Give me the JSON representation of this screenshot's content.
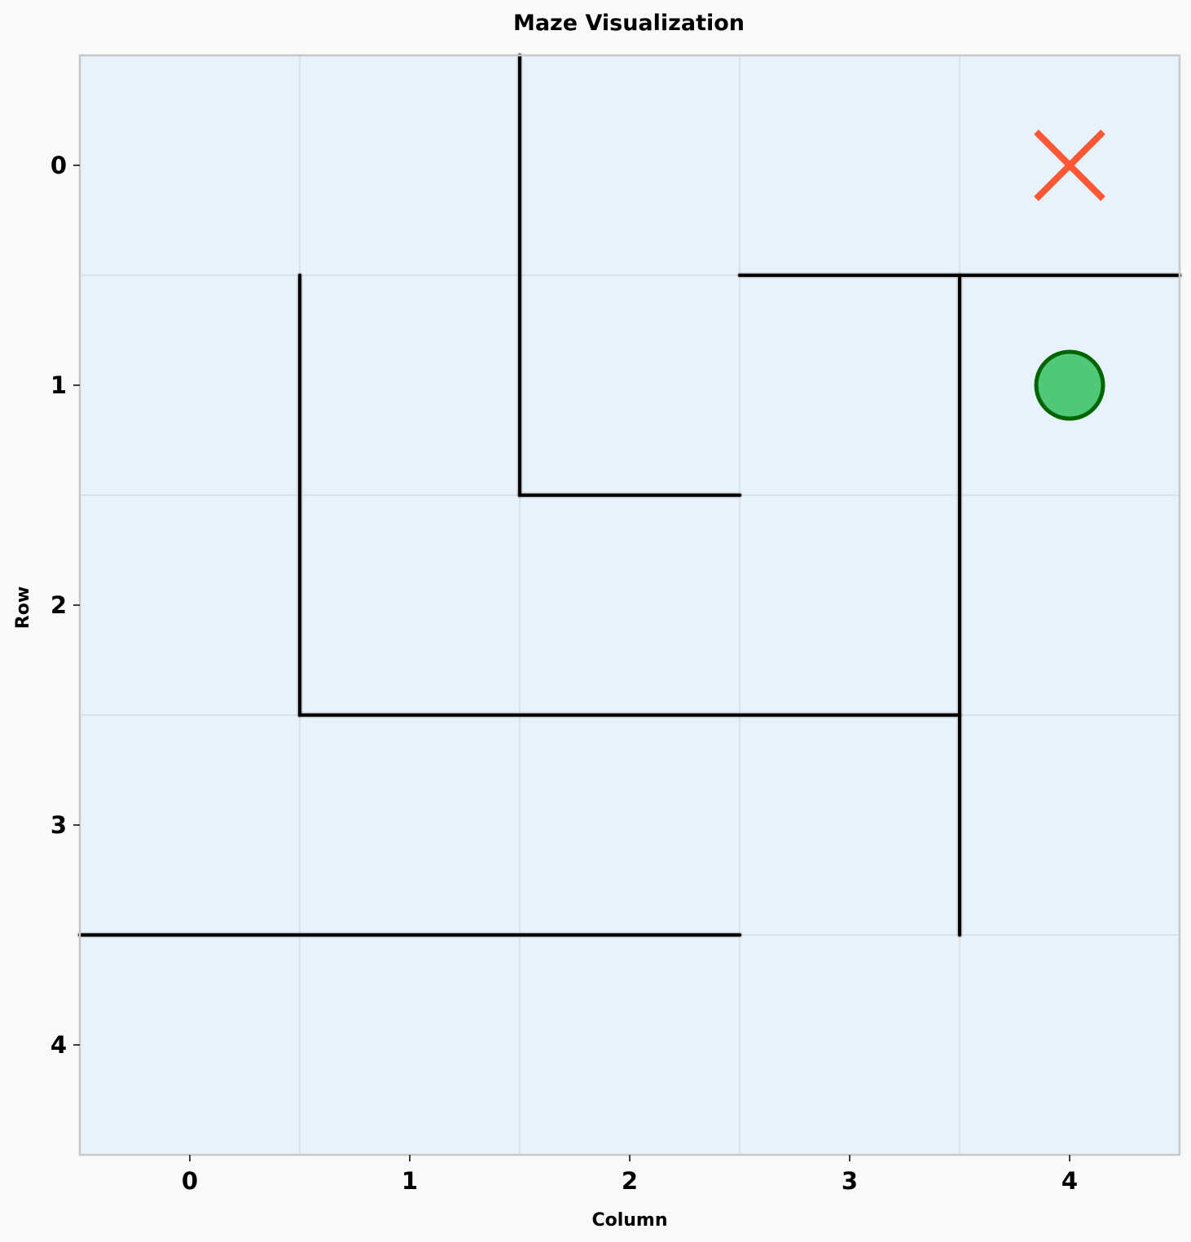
{
  "chart_data": {
    "type": "maze",
    "title": "Maze Visualization",
    "xlabel": "Column",
    "ylabel": "Row",
    "xlim": [
      -0.5,
      4.5
    ],
    "ylim": [
      4.5,
      -0.5
    ],
    "y_inverted": true,
    "x_ticks": [
      0,
      1,
      2,
      3,
      4
    ],
    "y_ticks": [
      0,
      1,
      2,
      3,
      4
    ],
    "grid": true,
    "walls": [
      {
        "x1": 1.5,
        "y1": -0.5,
        "x2": 1.5,
        "y2": 1.5
      },
      {
        "x1": 1.5,
        "y1": 1.5,
        "x2": 2.5,
        "y2": 1.5
      },
      {
        "x1": 0.5,
        "y1": 0.5,
        "x2": 0.5,
        "y2": 2.5
      },
      {
        "x1": 0.5,
        "y1": 2.5,
        "x2": 3.5,
        "y2": 2.5
      },
      {
        "x1": 2.5,
        "y1": 0.5,
        "x2": 4.5,
        "y2": 0.5
      },
      {
        "x1": 3.5,
        "y1": 0.5,
        "x2": 3.5,
        "y2": 3.5
      },
      {
        "x1": -0.5,
        "y1": 3.5,
        "x2": 2.5,
        "y2": 3.5
      }
    ],
    "goal": {
      "col": 4,
      "row": 0,
      "marker": "x",
      "color": "#ff5733"
    },
    "agent": {
      "col": 4,
      "row": 1,
      "marker": "circle",
      "fill": "#50c878",
      "stroke": "#006400"
    },
    "colors": {
      "background": "#e8f2fb",
      "page": "#f9f9f9",
      "wall": "#000000",
      "grid": "#d3dde6",
      "frame": "#c8c8c8"
    }
  }
}
